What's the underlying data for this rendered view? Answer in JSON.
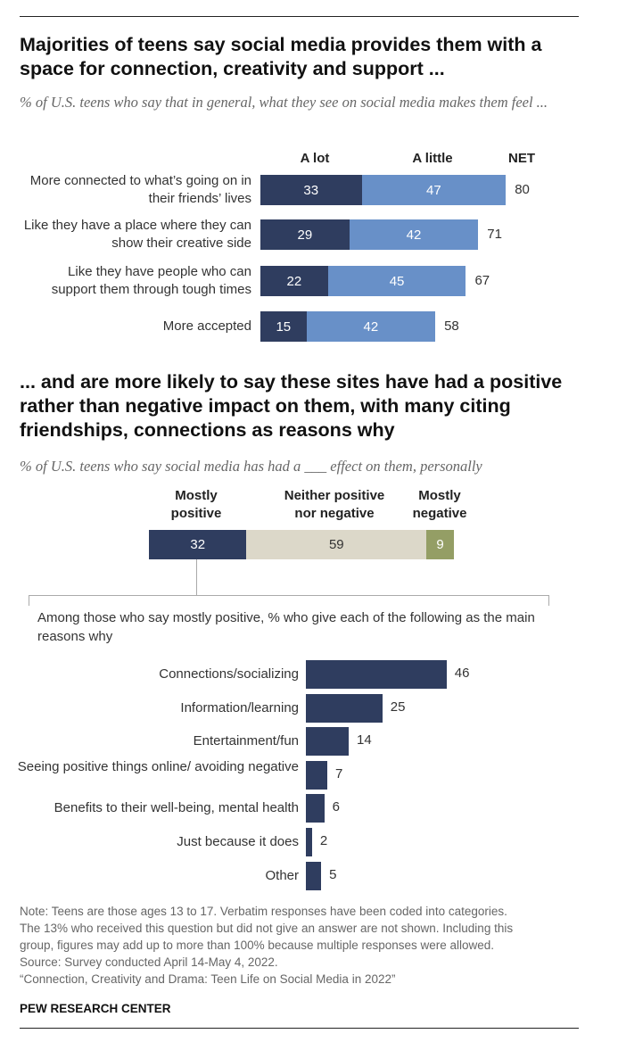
{
  "colors": {
    "dark": "#2f3d5f",
    "light": "#6890c8",
    "beige": "#dcd8c9",
    "green": "#949e65"
  },
  "chart_data": [
    {
      "type": "bar",
      "stacked": true,
      "title": "Majorities of teens say social media provides them with a space for connection, creativity and support ...",
      "subtitle": "% of U.S. teens who say that in general, what they see on social media makes them feel ...",
      "legend": [
        "A lot",
        "A little",
        "NET"
      ],
      "categories": [
        "More connected to what’s going on in their friends’ lives",
        "Like they have a place where they can show their creative side",
        "Like they have people who can support them through tough times",
        "More accepted"
      ],
      "series": [
        {
          "name": "A lot",
          "values": [
            33,
            29,
            22,
            15
          ]
        },
        {
          "name": "A little",
          "values": [
            47,
            42,
            45,
            42
          ]
        }
      ],
      "net": [
        80,
        71,
        67,
        58
      ]
    },
    {
      "type": "bar",
      "stacked": true,
      "title": "... and are more likely to say these sites have had a positive rather than negative impact on them, with many citing friendships, connections as reasons why",
      "subtitle": "% of U.S. teens who say social media has had a ___ effect on them, personally",
      "categories": [
        "Mostly positive",
        "Neither positive nor negative",
        "Mostly negative"
      ],
      "values": [
        32,
        59,
        9
      ]
    },
    {
      "type": "bar",
      "title": "Among those who say mostly positive, % who give each of the following as the main reasons why",
      "categories": [
        "Connections/socializing",
        "Information/learning",
        "Entertainment/fun",
        "Seeing positive things online/ avoiding negative",
        "Benefits to their well-being, mental health",
        "Just because it does",
        "Other"
      ],
      "values": [
        46,
        25,
        14,
        7,
        6,
        2,
        5
      ]
    }
  ],
  "note": [
    "Note: Teens are those ages 13 to 17. Verbatim responses have been coded into categories.",
    "The 13% who received this question but did not give an answer are not shown. Including this",
    "group, figures may add up to more than 100% because multiple responses were allowed.",
    "Source: Survey conducted April 14-May 4, 2022.",
    "“Connection, Creativity and Drama: Teen Life on Social Media in 2022”"
  ],
  "source_org": "PEW RESEARCH CENTER"
}
